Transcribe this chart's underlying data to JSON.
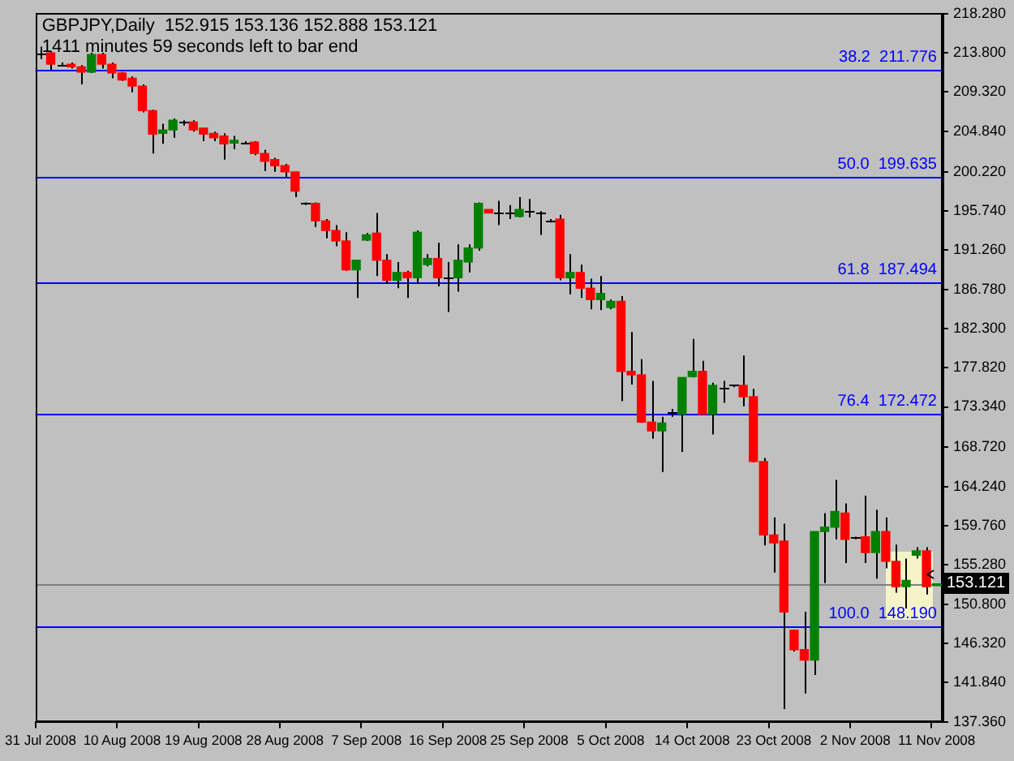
{
  "chart_data": {
    "type": "candlestick",
    "title": "GBPJPY,Daily  152.915 153.136 152.888 153.121",
    "subtitle": "1411 minutes 59 seconds left to bar end",
    "categories": [
      "31 Jul 2008",
      null,
      null,
      null,
      null,
      null,
      null,
      null,
      "10 Aug 2008",
      null,
      null,
      null,
      null,
      null,
      null,
      null,
      "19 Aug 2008",
      null,
      null,
      null,
      null,
      null,
      null,
      null,
      "28 Aug 2008",
      null,
      null,
      null,
      null,
      null,
      null,
      null,
      "7 Sep 2008",
      null,
      null,
      null,
      null,
      null,
      null,
      null,
      "16 Sep 2008",
      null,
      null,
      null,
      null,
      null,
      null,
      null,
      "25 Sep 2008",
      null,
      null,
      null,
      null,
      null,
      null,
      null,
      "5 Oct 2008",
      null,
      null,
      null,
      null,
      null,
      null,
      null,
      "14 Oct 2008",
      null,
      null,
      null,
      null,
      null,
      null,
      null,
      "23 Oct 2008",
      null,
      null,
      null,
      null,
      null,
      null,
      null,
      "2 Nov 2008",
      null,
      null,
      null,
      null,
      null,
      null,
      null,
      "11 Nov 2008"
    ],
    "ohlc": [
      [
        213.8,
        214.5,
        213.1,
        213.8
      ],
      [
        213.8,
        214.0,
        211.8,
        212.5
      ],
      [
        212.5,
        212.7,
        212.4,
        212.5
      ],
      [
        212.5,
        212.7,
        212.0,
        212.2
      ],
      [
        212.2,
        212.4,
        210.2,
        211.6
      ],
      [
        211.6,
        213.8,
        211.5,
        213.6
      ],
      [
        213.6,
        213.8,
        212.0,
        212.5
      ],
      [
        212.5,
        212.7,
        210.9,
        211.5
      ],
      [
        211.5,
        211.6,
        210.6,
        210.7
      ],
      [
        210.9,
        211.1,
        209.3,
        210.0
      ],
      [
        210.0,
        210.2,
        207.0,
        207.2
      ],
      [
        207.2,
        207.3,
        202.3,
        204.5
      ],
      [
        204.6,
        205.7,
        203.4,
        205.0
      ],
      [
        205.0,
        206.3,
        204.1,
        206.1
      ],
      [
        205.9,
        206.1,
        205.5,
        205.9
      ],
      [
        205.9,
        206.1,
        204.8,
        205.0
      ],
      [
        205.2,
        205.2,
        203.7,
        204.5
      ],
      [
        204.6,
        204.8,
        203.7,
        204.1
      ],
      [
        204.3,
        204.6,
        201.6,
        203.4
      ],
      [
        203.5,
        204.3,
        202.8,
        203.8
      ],
      [
        203.6,
        203.7,
        203.4,
        203.6
      ],
      [
        203.6,
        203.7,
        202.1,
        202.3
      ],
      [
        202.3,
        202.7,
        200.3,
        201.4
      ],
      [
        201.6,
        201.8,
        200.2,
        200.9
      ],
      [
        200.9,
        201.1,
        199.6,
        200.2
      ],
      [
        200.2,
        200.2,
        197.3,
        198.0
      ],
      [
        196.6,
        196.7,
        196.4,
        196.6
      ],
      [
        196.6,
        196.7,
        193.9,
        194.6
      ],
      [
        194.6,
        194.8,
        192.6,
        193.5
      ],
      [
        193.5,
        194.1,
        191.7,
        192.3
      ],
      [
        192.3,
        193.3,
        188.9,
        189.0
      ],
      [
        189.0,
        190.1,
        185.8,
        190.1
      ],
      [
        192.4,
        193.2,
        192.3,
        193.0
      ],
      [
        193.2,
        195.5,
        188.3,
        190.1
      ],
      [
        190.1,
        190.8,
        187.4,
        187.8
      ],
      [
        187.8,
        189.9,
        186.9,
        188.7
      ],
      [
        188.7,
        188.9,
        185.8,
        188.1
      ],
      [
        188.1,
        193.5,
        187.4,
        193.3
      ],
      [
        189.6,
        190.8,
        189.4,
        190.3
      ],
      [
        190.3,
        192.1,
        187.1,
        188.1
      ],
      [
        188.1,
        189.9,
        184.2,
        188.1
      ],
      [
        188.1,
        191.9,
        186.5,
        190.1
      ],
      [
        189.9,
        191.9,
        188.7,
        191.5
      ],
      [
        191.5,
        196.7,
        191.2,
        196.6
      ],
      [
        195.9,
        195.9,
        195.5,
        195.5
      ],
      [
        195.5,
        196.9,
        194.1,
        195.5
      ],
      [
        195.5,
        196.4,
        194.8,
        195.5
      ],
      [
        195.1,
        197.3,
        195.0,
        195.9
      ],
      [
        195.7,
        197.1,
        195.0,
        195.7
      ],
      [
        195.5,
        195.7,
        193.0,
        195.5
      ],
      [
        194.6,
        194.8,
        194.4,
        194.6
      ],
      [
        194.8,
        195.3,
        187.8,
        188.1
      ],
      [
        188.1,
        190.8,
        186.2,
        188.7
      ],
      [
        188.7,
        189.6,
        185.8,
        186.9
      ],
      [
        186.9,
        188.0,
        184.5,
        185.6
      ],
      [
        185.6,
        188.3,
        184.4,
        186.3
      ],
      [
        184.7,
        185.6,
        184.5,
        185.4
      ],
      [
        185.4,
        186.0,
        174.0,
        177.4
      ],
      [
        177.4,
        181.9,
        175.9,
        177.0
      ],
      [
        177.0,
        178.8,
        171.5,
        171.6
      ],
      [
        171.6,
        176.3,
        169.7,
        170.6
      ],
      [
        170.6,
        172.2,
        165.9,
        171.5
      ],
      [
        172.7,
        173.1,
        172.2,
        172.7
      ],
      [
        172.5,
        176.7,
        168.2,
        176.7
      ],
      [
        176.8,
        181.1,
        176.7,
        177.4
      ],
      [
        177.4,
        178.6,
        172.5,
        172.5
      ],
      [
        172.5,
        176.1,
        170.2,
        175.8
      ],
      [
        175.6,
        176.3,
        173.8,
        175.6
      ],
      [
        175.8,
        175.9,
        175.6,
        175.8
      ],
      [
        175.8,
        179.2,
        173.4,
        174.5
      ],
      [
        174.5,
        175.4,
        167.0,
        167.1
      ],
      [
        167.1,
        167.5,
        157.5,
        158.7
      ],
      [
        158.7,
        160.7,
        154.4,
        157.8
      ],
      [
        158.0,
        160.0,
        138.8,
        149.9
      ],
      [
        147.8,
        147.9,
        145.4,
        145.6
      ],
      [
        145.6,
        149.9,
        140.6,
        144.4
      ],
      [
        144.4,
        159.1,
        142.7,
        159.1
      ],
      [
        159.1,
        161.2,
        153.2,
        159.6
      ],
      [
        159.6,
        165.0,
        158.2,
        161.4
      ],
      [
        161.2,
        162.3,
        155.5,
        158.2
      ],
      [
        158.4,
        158.5,
        158.2,
        158.4
      ],
      [
        158.5,
        163.2,
        155.5,
        156.7
      ],
      [
        156.7,
        161.6,
        153.7,
        159.1
      ],
      [
        159.1,
        160.7,
        154.9,
        155.7
      ],
      [
        155.7,
        157.6,
        152.1,
        152.8
      ],
      [
        152.8,
        156.0,
        150.3,
        153.5
      ],
      [
        156.4,
        157.3,
        156.0,
        156.9
      ],
      [
        156.9,
        157.3,
        151.9,
        152.8
      ],
      [
        152.915,
        153.136,
        152.888,
        153.121
      ]
    ],
    "colors": [
      "#000000",
      "#ff0000",
      "#000000",
      "#ff0000",
      "#ff0000",
      "#008000",
      "#ff0000",
      "#ff0000",
      "#ff0000",
      "#ff0000",
      "#ff0000",
      "#ff0000",
      "#008000",
      "#008000",
      "#000000",
      "#ff0000",
      "#ff0000",
      "#ff0000",
      "#ff0000",
      "#008000",
      "#000000",
      "#ff0000",
      "#ff0000",
      "#ff0000",
      "#ff0000",
      "#ff0000",
      "#000000",
      "#ff0000",
      "#ff0000",
      "#ff0000",
      "#ff0000",
      "#008000",
      "#008000",
      "#ff0000",
      "#ff0000",
      "#008000",
      "#ff0000",
      "#008000",
      "#008000",
      "#ff0000",
      "#000000",
      "#008000",
      "#008000",
      "#008000",
      "#ff0000",
      "#000000",
      "#000000",
      "#008000",
      "#000000",
      "#000000",
      "#000000",
      "#ff0000",
      "#008000",
      "#ff0000",
      "#ff0000",
      "#008000",
      "#008000",
      "#ff0000",
      "#ff0000",
      "#ff0000",
      "#ff0000",
      "#008000",
      "#000000",
      "#008000",
      "#008000",
      "#ff0000",
      "#008000",
      "#000000",
      "#000000",
      "#ff0000",
      "#ff0000",
      "#ff0000",
      "#ff0000",
      "#ff0000",
      "#ff0000",
      "#ff0000",
      "#008000",
      "#008000",
      "#008000",
      "#ff0000",
      "#000000",
      "#ff0000",
      "#008000",
      "#ff0000",
      "#ff0000",
      "#008000",
      "#008000",
      "#ff0000",
      "#008000"
    ],
    "ylim": [
      137.36,
      218.28
    ],
    "yticks": [
      {
        "value": 137.36,
        "label": "137.360"
      },
      {
        "value": 141.84,
        "label": "141.840"
      },
      {
        "value": 146.32,
        "label": "146.320"
      },
      {
        "value": 150.8,
        "label": "150.800"
      },
      {
        "value": 155.28,
        "label": "155.280"
      },
      {
        "value": 159.76,
        "label": "159.760"
      },
      {
        "value": 164.24,
        "label": "164.240"
      },
      {
        "value": 168.72,
        "label": "168.720"
      },
      {
        "value": 173.34,
        "label": "173.340"
      },
      {
        "value": 177.82,
        "label": "177.820"
      },
      {
        "value": 182.3,
        "label": "182.300"
      },
      {
        "value": 186.78,
        "label": "186.780"
      },
      {
        "value": 191.26,
        "label": "191.260"
      },
      {
        "value": 195.74,
        "label": "195.740"
      },
      {
        "value": 200.22,
        "label": "200.220"
      },
      {
        "value": 204.84,
        "label": "204.840"
      },
      {
        "value": 209.32,
        "label": "209.320"
      },
      {
        "value": 213.8,
        "label": "213.800"
      },
      {
        "value": 218.28,
        "label": "218.280"
      }
    ],
    "ref_lines": [
      {
        "axis": "y",
        "value": 211.776,
        "label": "38.2  211.776",
        "color": "#0000ff"
      },
      {
        "axis": "y",
        "value": 199.635,
        "label": "50.0  199.635",
        "color": "#0000ff"
      },
      {
        "axis": "y",
        "value": 187.494,
        "label": "61.8  187.494",
        "color": "#0000ff"
      },
      {
        "axis": "y",
        "value": 172.472,
        "label": "76.4  172.472",
        "color": "#0000ff"
      },
      {
        "axis": "y",
        "value": 148.19,
        "label": "100.0  148.190",
        "color": "#0000ff"
      },
      {
        "axis": "y",
        "value": 153.121,
        "label": "153.121",
        "color": "#808080"
      }
    ],
    "grid": false,
    "legend": false
  }
}
